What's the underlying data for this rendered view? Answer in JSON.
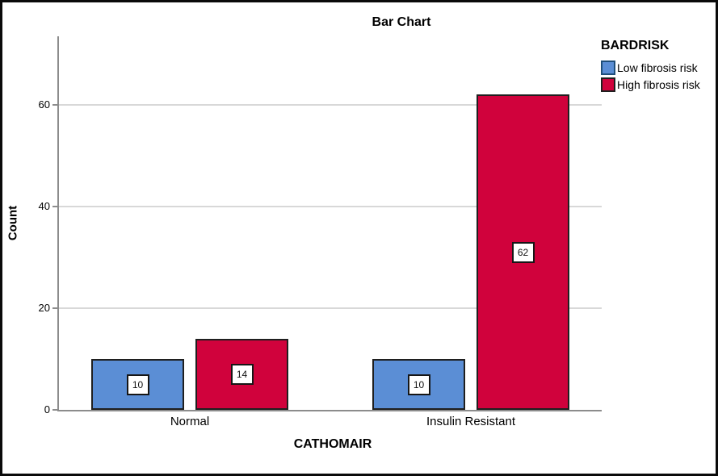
{
  "chart_data": {
    "type": "bar",
    "title": "Bar Chart",
    "xlabel": "CATHOMAIR",
    "ylabel": "Count",
    "categories": [
      "Normal",
      "Insulin Resistant"
    ],
    "series": [
      {
        "name": "Low fibrosis risk",
        "color": "#5B8ED5",
        "swatch_border": "#1F4E79",
        "values": [
          10,
          10
        ]
      },
      {
        "name": "High fibrosis risk",
        "color": "#D0023C",
        "swatch_border": "#1F1F1F",
        "values": [
          14,
          62
        ]
      }
    ],
    "bar_labels": [
      [
        10,
        14
      ],
      [
        10,
        62
      ]
    ],
    "ylim": [
      0,
      73.5
    ],
    "yticks": [
      0,
      20,
      40,
      60
    ],
    "grid": true,
    "legend_title": "BARDRISK",
    "legend_position": "right",
    "colors": {
      "bar_border": "#1F1F1F",
      "axis_line": "#8C8C8C",
      "gridline": "#D8D8D8",
      "label_box_bg": "#FFFFFF"
    }
  }
}
